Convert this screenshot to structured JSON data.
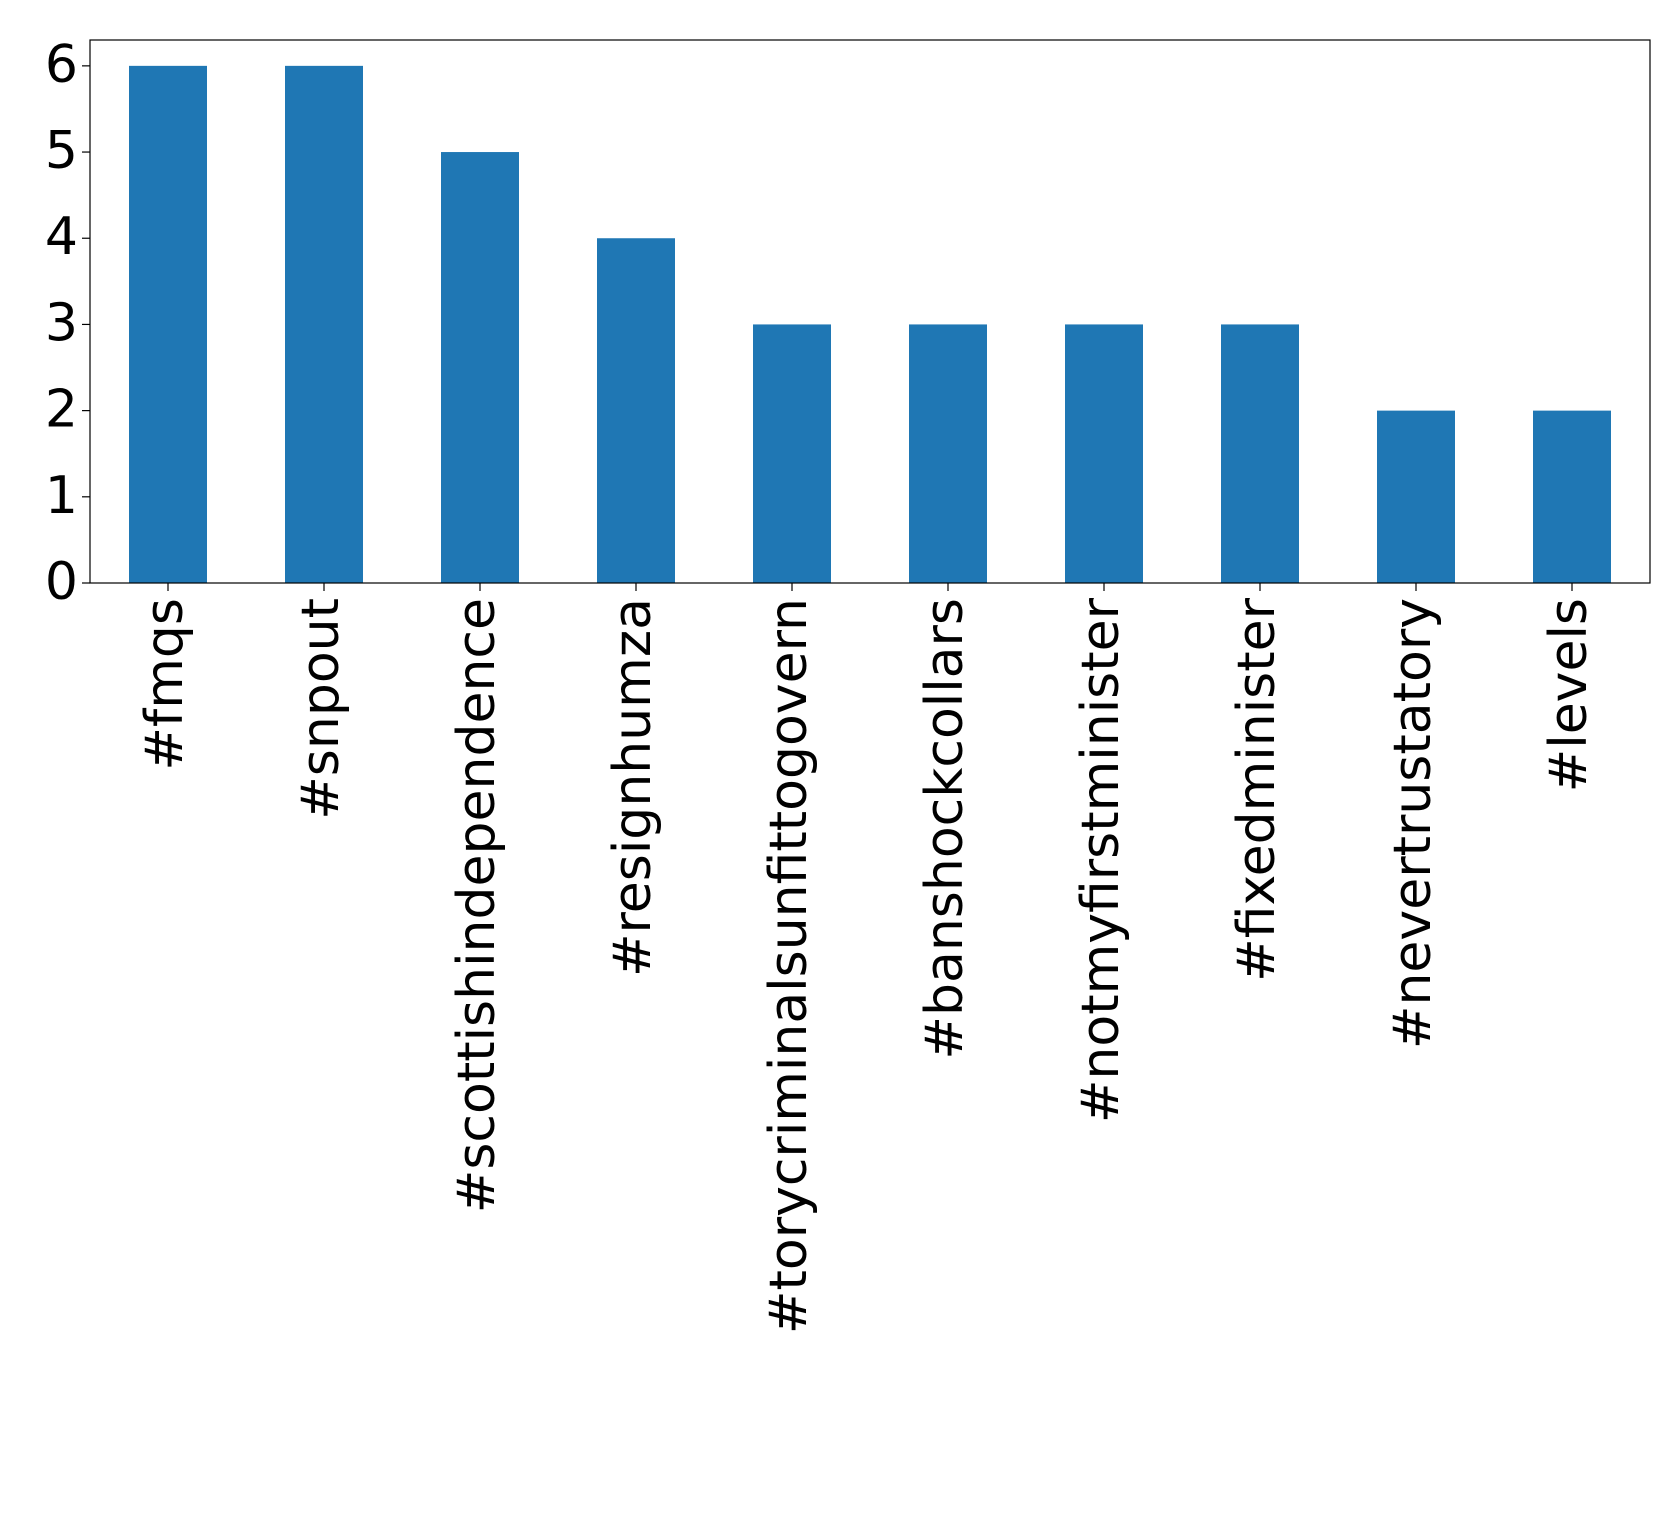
{
  "chart_data": {
    "type": "bar",
    "categories": [
      "#fmqs",
      "#snpout",
      "#scottishindependence",
      "#resignhumza",
      "#torycriminalsunfittogovern",
      "#banshockcollars",
      "#notmyfirstminister",
      "#fixedminister",
      "#nevertrustatory",
      "#levels"
    ],
    "values": [
      6,
      6,
      5,
      4,
      3,
      3,
      3,
      3,
      2,
      2
    ],
    "color": "#1f77b4",
    "ylim": [
      0,
      6.3
    ],
    "yticks": [
      0,
      1,
      2,
      3,
      4,
      5,
      6
    ],
    "grid": false
  }
}
